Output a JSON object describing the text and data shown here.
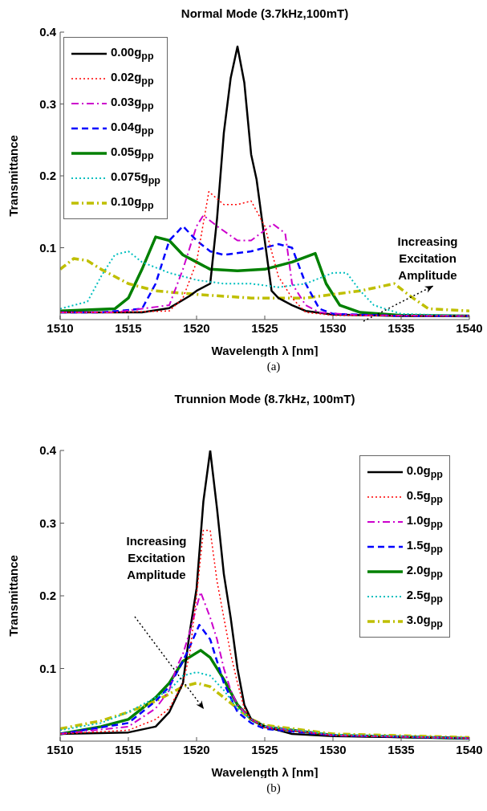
{
  "chart_data": [
    {
      "type": "line",
      "title": "Normal Mode (3.7kHz,100mT)",
      "xlabel": "Wavelength λ [nm]",
      "ylabel": "Transmittance",
      "xlim": [
        1510,
        1540
      ],
      "xticks": [
        1510,
        1515,
        1520,
        1525,
        1530,
        1535,
        1540
      ],
      "ylim": [
        0,
        0.4
      ],
      "yticks": [
        0.1,
        0.2,
        0.3,
        0.4
      ],
      "legend": "top left",
      "annotations": [
        "Increasing Excitation Amplitude",
        "(a)"
      ],
      "series": [
        {
          "name": "0.00g$_{pp}$",
          "color": "#000000",
          "line_style": "solid",
          "x": [
            1510,
            1513,
            1516,
            1518,
            1519.5,
            1520,
            1521,
            1521.5,
            1522,
            1522.5,
            1523,
            1523.5,
            1524,
            1524.4,
            1525,
            1525.5,
            1526,
            1527,
            1528,
            1530,
            1535,
            1540
          ],
          "values": [
            0.01,
            0.01,
            0.01,
            0.016,
            0.033,
            0.04,
            0.05,
            0.14,
            0.26,
            0.336,
            0.38,
            0.33,
            0.23,
            0.195,
            0.11,
            0.04,
            0.03,
            0.02,
            0.012,
            0.007,
            0.005,
            0.005
          ]
        },
        {
          "name": "0.02g$_{pp}$",
          "color": "#ff0000",
          "line_style": "dotted",
          "x": [
            1510,
            1514,
            1518,
            1519,
            1520,
            1520.9,
            1522,
            1523,
            1524,
            1525,
            1526,
            1527,
            1528,
            1530,
            1535,
            1540
          ],
          "values": [
            0.01,
            0.01,
            0.012,
            0.03,
            0.08,
            0.178,
            0.16,
            0.16,
            0.165,
            0.13,
            0.06,
            0.03,
            0.01,
            0.006,
            0.005,
            0.005
          ]
        },
        {
          "name": "0.03g$_{pp}$",
          "color": "#cc00cc",
          "line_style": "dashdot",
          "x": [
            1510,
            1514,
            1518,
            1519,
            1520,
            1520.5,
            1521.5,
            1523,
            1524,
            1525.6,
            1526.5,
            1527,
            1528,
            1529,
            1532,
            1540
          ],
          "values": [
            0.01,
            0.01,
            0.02,
            0.07,
            0.13,
            0.145,
            0.13,
            0.11,
            0.11,
            0.133,
            0.12,
            0.05,
            0.02,
            0.01,
            0.006,
            0.005
          ]
        },
        {
          "name": "0.04g$_{pp}$",
          "color": "#0000ff",
          "line_style": "dashed",
          "x": [
            1510,
            1513,
            1516,
            1517,
            1518,
            1519,
            1520,
            1521,
            1522,
            1524,
            1526,
            1527,
            1528,
            1529,
            1530,
            1535,
            1540
          ],
          "values": [
            0.01,
            0.01,
            0.015,
            0.05,
            0.11,
            0.13,
            0.11,
            0.095,
            0.09,
            0.095,
            0.105,
            0.1,
            0.05,
            0.015,
            0.008,
            0.005,
            0.005
          ]
        },
        {
          "name": "0.05g$_{pp}$",
          "color": "#008000",
          "line_style": "solid",
          "x": [
            1510,
            1514,
            1515,
            1516,
            1517,
            1518,
            1519,
            1520,
            1521,
            1523,
            1525,
            1527,
            1528.7,
            1529.5,
            1530.5,
            1532,
            1535,
            1540
          ],
          "values": [
            0.012,
            0.015,
            0.03,
            0.07,
            0.115,
            0.11,
            0.09,
            0.08,
            0.07,
            0.068,
            0.07,
            0.08,
            0.092,
            0.05,
            0.02,
            0.01,
            0.006,
            0.005
          ]
        },
        {
          "name": "0.075g$_{pp}$",
          "color": "#00bfbf",
          "line_style": "dotted",
          "x": [
            1510,
            1512,
            1513,
            1514,
            1515,
            1516,
            1518,
            1520,
            1522,
            1524,
            1526,
            1528,
            1530,
            1531,
            1532,
            1533,
            1535,
            1540
          ],
          "values": [
            0.015,
            0.025,
            0.06,
            0.09,
            0.095,
            0.08,
            0.065,
            0.055,
            0.05,
            0.05,
            0.045,
            0.05,
            0.065,
            0.065,
            0.04,
            0.02,
            0.008,
            0.005
          ]
        },
        {
          "name": "0.10g$_{pp}$",
          "color": "#bfbf00",
          "line_style": "dashdot",
          "x": [
            1510,
            1511,
            1512,
            1513,
            1515,
            1517,
            1520,
            1524,
            1528,
            1532,
            1534.5,
            1535.5,
            1537,
            1540
          ],
          "values": [
            0.07,
            0.085,
            0.082,
            0.07,
            0.05,
            0.04,
            0.035,
            0.03,
            0.03,
            0.04,
            0.05,
            0.035,
            0.015,
            0.012
          ]
        }
      ]
    },
    {
      "type": "line",
      "title": "Trunnion Mode (8.7kHz, 100mT)",
      "xlabel": "Wavelength λ [nm]",
      "ylabel": "Transmittance",
      "xlim": [
        1510,
        1540
      ],
      "xticks": [
        1510,
        1515,
        1520,
        1525,
        1530,
        1535,
        1540
      ],
      "ylim": [
        0,
        0.4
      ],
      "yticks": [
        0.1,
        0.2,
        0.3,
        0.4
      ],
      "legend": "top right",
      "annotations": [
        "Increasing Excitation Amplitude",
        "(b)"
      ],
      "series": [
        {
          "name": "0.0g$_{pp}$",
          "color": "#000000",
          "line_style": "solid",
          "x": [
            1510,
            1515,
            1517,
            1518,
            1519,
            1519.5,
            1520,
            1520.5,
            1521,
            1521.5,
            1522,
            1522.5,
            1523,
            1523.5,
            1524,
            1525,
            1527,
            1530,
            1540
          ],
          "values": [
            0.01,
            0.012,
            0.02,
            0.04,
            0.08,
            0.15,
            0.21,
            0.33,
            0.4,
            0.32,
            0.23,
            0.17,
            0.1,
            0.05,
            0.03,
            0.02,
            0.01,
            0.007,
            0.004
          ]
        },
        {
          "name": "0.5g$_{pp}$",
          "color": "#ff0000",
          "line_style": "dotted",
          "x": [
            1510,
            1515,
            1517,
            1518,
            1519,
            1519.5,
            1520,
            1520.5,
            1521,
            1521.5,
            1522,
            1522.5,
            1523,
            1523.5,
            1524,
            1525,
            1530,
            1540
          ],
          "values": [
            0.01,
            0.015,
            0.03,
            0.045,
            0.08,
            0.12,
            0.2,
            0.29,
            0.29,
            0.22,
            0.17,
            0.12,
            0.08,
            0.045,
            0.03,
            0.018,
            0.008,
            0.004
          ]
        },
        {
          "name": "1.0g$_{pp}$",
          "color": "#cc00cc",
          "line_style": "dashdot",
          "x": [
            1510,
            1515,
            1517,
            1518,
            1518.5,
            1519,
            1519.5,
            1520.3,
            1521,
            1521.5,
            1522,
            1522.5,
            1523,
            1524,
            1525,
            1530,
            1540
          ],
          "values": [
            0.01,
            0.02,
            0.045,
            0.07,
            0.1,
            0.12,
            0.15,
            0.205,
            0.17,
            0.14,
            0.1,
            0.07,
            0.05,
            0.03,
            0.02,
            0.008,
            0.004
          ]
        },
        {
          "name": "1.5g$_{pp}$",
          "color": "#0000ff",
          "line_style": "dashed",
          "x": [
            1510,
            1515,
            1517,
            1518,
            1519,
            1519.5,
            1520.2,
            1521,
            1521.5,
            1522,
            1522.5,
            1523,
            1524,
            1525,
            1530,
            1540
          ],
          "values": [
            0.01,
            0.025,
            0.055,
            0.075,
            0.11,
            0.13,
            0.16,
            0.14,
            0.11,
            0.08,
            0.06,
            0.04,
            0.025,
            0.017,
            0.008,
            0.004
          ]
        },
        {
          "name": "2.0g$_{pp}$",
          "color": "#008000",
          "line_style": "solid",
          "x": [
            1510,
            1513,
            1515,
            1516,
            1517,
            1518,
            1519,
            1520.3,
            1521,
            1522,
            1523,
            1524,
            1525,
            1530,
            1540
          ],
          "values": [
            0.01,
            0.02,
            0.03,
            0.045,
            0.06,
            0.08,
            0.11,
            0.125,
            0.115,
            0.085,
            0.05,
            0.03,
            0.02,
            0.008,
            0.004
          ]
        },
        {
          "name": "2.5g$_{pp}$",
          "color": "#00bfbf",
          "line_style": "dotted",
          "x": [
            1510,
            1513,
            1515,
            1517,
            1518,
            1519,
            1520,
            1521,
            1522,
            1523,
            1524,
            1525,
            1530,
            1540
          ],
          "values": [
            0.015,
            0.025,
            0.04,
            0.06,
            0.07,
            0.09,
            0.095,
            0.09,
            0.07,
            0.045,
            0.03,
            0.02,
            0.009,
            0.004
          ]
        },
        {
          "name": "3.0g$_{pp}$",
          "color": "#bfbf00",
          "line_style": "dashdot",
          "x": [
            1510,
            1513,
            1515,
            1517,
            1518,
            1519,
            1520,
            1521,
            1522,
            1523,
            1524,
            1525,
            1530,
            1540
          ],
          "values": [
            0.017,
            0.028,
            0.04,
            0.055,
            0.065,
            0.075,
            0.08,
            0.075,
            0.06,
            0.045,
            0.03,
            0.022,
            0.01,
            0.005
          ]
        }
      ]
    }
  ]
}
